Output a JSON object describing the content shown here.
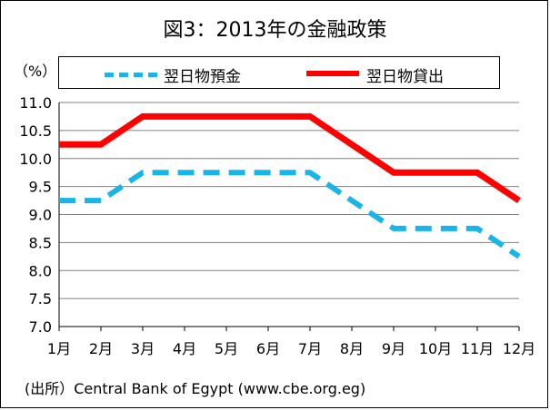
{
  "chart_data": {
    "type": "line",
    "title": "図3：2013年の金融政策",
    "ylabel": "（%）",
    "xlabel": "",
    "categories": [
      "1月",
      "2月",
      "3月",
      "4月",
      "5月",
      "6月",
      "7月",
      "8月",
      "9月",
      "10月",
      "11月",
      "12月"
    ],
    "ylim": [
      7.0,
      11.0
    ],
    "yticks": [
      "7.0",
      "7.5",
      "8.0",
      "8.5",
      "9.0",
      "9.5",
      "10.0",
      "10.5",
      "11.0"
    ],
    "grid": true,
    "legend_placement": "top",
    "series": [
      {
        "name": "翌日物預金",
        "color": "#18b4ea",
        "style": "dashed",
        "values": [
          9.25,
          9.25,
          9.75,
          9.75,
          9.75,
          9.75,
          9.75,
          9.25,
          8.75,
          8.75,
          8.75,
          8.25
        ]
      },
      {
        "name": "翌日物貸出",
        "color": "#ff0000",
        "style": "solid",
        "values": [
          10.25,
          10.25,
          10.75,
          10.75,
          10.75,
          10.75,
          10.75,
          10.25,
          9.75,
          9.75,
          9.75,
          9.25
        ]
      }
    ]
  },
  "source": "(出所）Central Bank of Egypt (www.cbe.org.eg)"
}
